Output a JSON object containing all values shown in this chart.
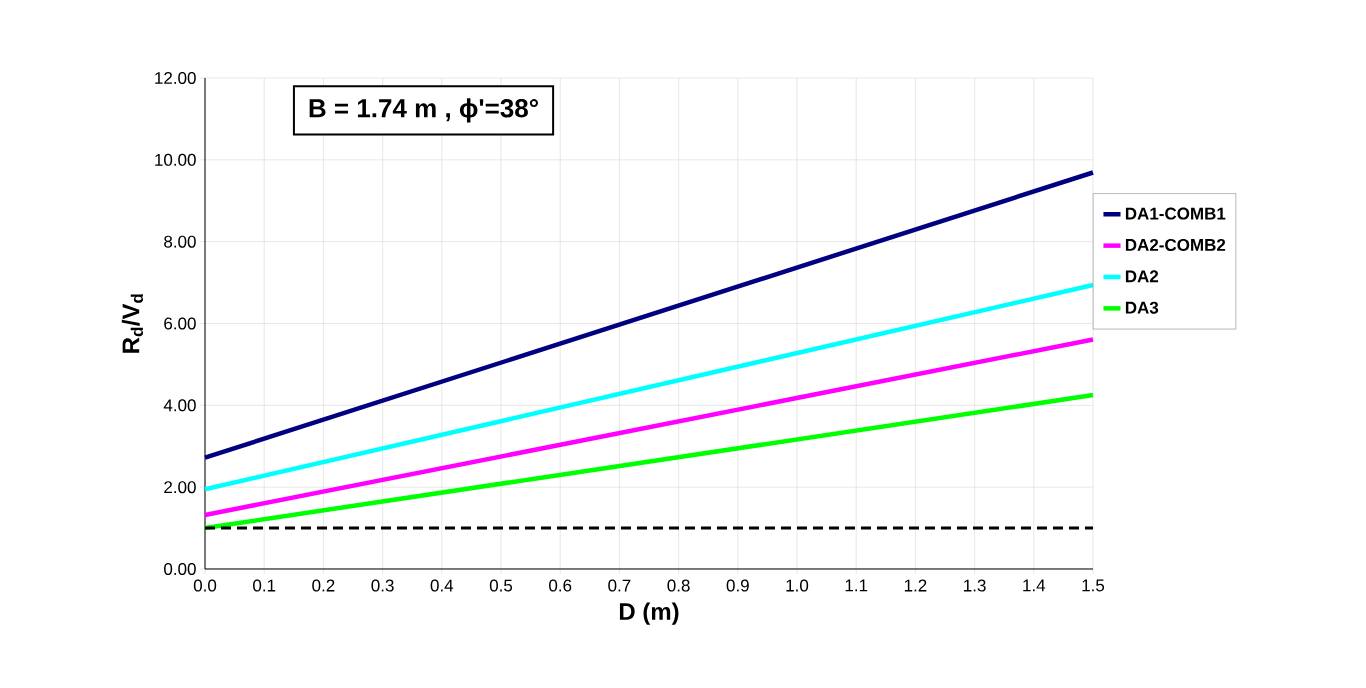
{
  "chart_data": {
    "type": "line",
    "xlabel": "D (m)",
    "ylabel": "R$_{d}$/V$_{d}$",
    "annotations": [
      "B = 1.74 m , ϕ'=38°"
    ],
    "x": [
      0,
      1.5
    ],
    "series": [
      {
        "name": "DA1-COMB1",
        "color": "#000080",
        "values": [
          2.72,
          9.69
        ]
      },
      {
        "name": "DA2-COMB2",
        "color": "#ff00ff",
        "values": [
          1.32,
          5.61
        ]
      },
      {
        "name": "DA2",
        "color": "#00ffff",
        "values": [
          1.95,
          6.94
        ]
      },
      {
        "name": "DA3",
        "color": "#00ff00",
        "values": [
          1.0,
          4.25
        ]
      }
    ],
    "ref_lines": [
      {
        "axis": "y",
        "value": 1.0,
        "color": "#000000",
        "line_style": "dashed"
      }
    ],
    "xlim": [
      0,
      1.5
    ],
    "xticks": [
      {
        "value": 0,
        "label": "0.0"
      },
      {
        "value": 0.1,
        "label": "0.1"
      },
      {
        "value": 0.2,
        "label": "0.2"
      },
      {
        "value": 0.3,
        "label": "0.3"
      },
      {
        "value": 0.4,
        "label": "0.4"
      },
      {
        "value": 0.5,
        "label": "0.5"
      },
      {
        "value": 0.6,
        "label": "0.6"
      },
      {
        "value": 0.7,
        "label": "0.7"
      },
      {
        "value": 0.8,
        "label": "0.8"
      },
      {
        "value": 0.9,
        "label": "0.9"
      },
      {
        "value": 1.0,
        "label": "1.0"
      },
      {
        "value": 1.1,
        "label": "1.1"
      },
      {
        "value": 1.2,
        "label": "1.2"
      },
      {
        "value": 1.3,
        "label": "1.3"
      },
      {
        "value": 1.4,
        "label": "1.4"
      },
      {
        "value": 1.5,
        "label": "1.5"
      }
    ],
    "ylim": [
      0,
      12
    ],
    "yticks": [
      {
        "value": 0,
        "label": "0.00"
      },
      {
        "value": 2,
        "label": "2.00"
      },
      {
        "value": 4,
        "label": "4.00"
      },
      {
        "value": 6,
        "label": "6.00"
      },
      {
        "value": 8,
        "label": "8.00"
      },
      {
        "value": 10,
        "label": "10.00"
      },
      {
        "value": 12,
        "label": "12.00"
      }
    ],
    "grid": true,
    "legend": "right",
    "marker": "none",
    "line_style": "solid"
  }
}
